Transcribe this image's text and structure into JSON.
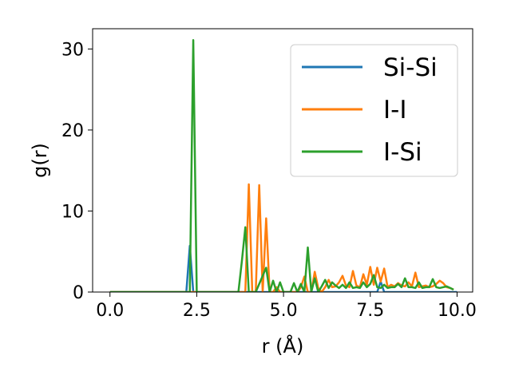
{
  "chart_data": {
    "type": "line",
    "title": "",
    "xlabel": "r (Å)",
    "ylabel": "g(r)",
    "xlim": [
      -0.5,
      10.45
    ],
    "ylim": [
      0,
      32.5
    ],
    "xticks": [
      0.0,
      2.5,
      5.0,
      7.5,
      10.0
    ],
    "xtick_labels": [
      "0.0",
      "2.5",
      "5.0",
      "7.5",
      "10.0"
    ],
    "yticks": [
      0,
      10,
      20,
      30
    ],
    "ytick_labels": [
      "0",
      "10",
      "20",
      "30"
    ],
    "grid": false,
    "legend_position": "top-right",
    "series": [
      {
        "name": "Si-Si",
        "color": "#1f77b4",
        "x": [
          0.0,
          2.2,
          2.3,
          2.4,
          7.7,
          7.8,
          7.9,
          8.0,
          10.0
        ],
        "y": [
          0,
          0,
          5.7,
          0,
          0,
          1.3,
          0,
          0,
          0
        ]
      },
      {
        "name": "I-I",
        "color": "#ff7f0e",
        "x": [
          0.0,
          3.9,
          4.0,
          4.1,
          4.2,
          4.3,
          4.4,
          4.5,
          4.6,
          4.7,
          4.8,
          4.9,
          5.0,
          5.1,
          5.2,
          5.3,
          5.4,
          5.5,
          5.6,
          5.7,
          5.8,
          5.9,
          6.0,
          6.1,
          6.2,
          6.3,
          6.4,
          6.5,
          6.6,
          6.7,
          6.8,
          6.9,
          7.0,
          7.1,
          7.2,
          7.3,
          7.4,
          7.5,
          7.6,
          7.7,
          7.8,
          7.9,
          8.0,
          8.1,
          8.2,
          8.3,
          8.4,
          8.5,
          8.6,
          8.7,
          8.8,
          8.9,
          9.0,
          9.1,
          9.2,
          9.3,
          9.4,
          9.5,
          9.6,
          9.7,
          9.8,
          9.9
        ],
        "y": [
          0,
          0,
          13.3,
          0,
          0,
          13.2,
          0,
          9.1,
          0,
          0,
          0.6,
          0,
          0,
          0,
          0,
          0,
          0,
          0.6,
          1.9,
          0,
          0,
          2.5,
          0.5,
          0,
          0.6,
          1.5,
          0.6,
          0.7,
          1.2,
          2.0,
          0.8,
          0.6,
          2.6,
          0.8,
          0.6,
          2.2,
          0.9,
          3.1,
          0.9,
          3.0,
          1.3,
          2.9,
          0.6,
          0.9,
          0.7,
          1.1,
          0.8,
          0.7,
          1.2,
          0.7,
          2.4,
          0.6,
          0.7,
          0.8,
          0.6,
          0.7,
          1.0,
          1.4,
          1.1,
          0.6,
          0.5,
          0.3
        ]
      },
      {
        "name": "I-Si",
        "color": "#2ca02c",
        "x": [
          0.0,
          2.3,
          2.4,
          2.5,
          3.7,
          3.8,
          3.9,
          4.0,
          4.1,
          4.2,
          4.5,
          4.6,
          4.7,
          4.8,
          4.9,
          5.0,
          5.1,
          5.2,
          5.3,
          5.4,
          5.5,
          5.6,
          5.7,
          5.8,
          5.9,
          6.0,
          6.1,
          6.2,
          6.3,
          6.4,
          6.5,
          6.6,
          6.7,
          6.8,
          6.9,
          7.0,
          7.1,
          7.2,
          7.3,
          7.4,
          7.5,
          7.6,
          7.7,
          7.8,
          7.9,
          8.0,
          8.1,
          8.2,
          8.3,
          8.4,
          8.5,
          8.6,
          8.7,
          8.8,
          8.9,
          9.0,
          9.1,
          9.2,
          9.3,
          9.4,
          9.5,
          9.6,
          9.7,
          9.8,
          9.9
        ],
        "y": [
          0,
          0,
          31.1,
          0,
          0,
          3.8,
          8.0,
          0,
          0,
          0,
          3.0,
          0,
          1.4,
          0,
          1.2,
          0,
          0,
          0,
          1.1,
          0,
          1.0,
          0,
          5.5,
          0,
          1.7,
          0,
          0.7,
          1.5,
          0.5,
          1.2,
          0.8,
          0.5,
          0.9,
          0.5,
          1.2,
          0.5,
          0.6,
          0.5,
          1.2,
          0.6,
          1.0,
          2.1,
          0.6,
          0.5,
          0.9,
          0.5,
          0.6,
          0.6,
          1.0,
          0.6,
          1.7,
          0.6,
          0.6,
          0.5,
          1.2,
          0.5,
          0.6,
          0.6,
          1.6,
          0.6,
          0.5,
          0.6,
          0.7,
          0.5,
          0.3
        ]
      }
    ]
  }
}
